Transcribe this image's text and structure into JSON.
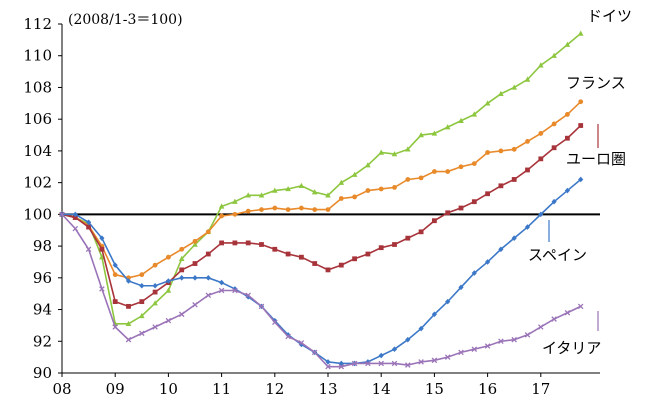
{
  "chart_data": {
    "type": "line",
    "note": "(2008/1-3＝100)",
    "ylim": [
      90,
      112
    ],
    "yticks": [
      90,
      92,
      94,
      96,
      98,
      100,
      102,
      104,
      106,
      108,
      110,
      112
    ],
    "xlim": [
      0,
      40
    ],
    "xticks": [
      {
        "label": "08",
        "q": 0
      },
      {
        "label": "09",
        "q": 4
      },
      {
        "label": "10",
        "q": 8
      },
      {
        "label": "11",
        "q": 12
      },
      {
        "label": "12",
        "q": 16
      },
      {
        "label": "13",
        "q": 20
      },
      {
        "label": "14",
        "q": 24
      },
      {
        "label": "15",
        "q": 28
      },
      {
        "label": "16",
        "q": 32
      },
      {
        "label": "17",
        "q": 36
      }
    ],
    "reference_line": 100,
    "series": [
      {
        "name": "ドイツ",
        "color": "#8dc63f",
        "marker": "triangle",
        "values": [
          100,
          99.8,
          99.4,
          97.3,
          93.1,
          93.1,
          93.6,
          94.4,
          95.2,
          97.2,
          98.1,
          98.9,
          100.5,
          100.8,
          101.2,
          101.2,
          101.5,
          101.6,
          101.8,
          101.4,
          101.2,
          102.0,
          102.5,
          103.1,
          103.9,
          103.8,
          104.1,
          105.0,
          105.1,
          105.5,
          105.9,
          106.3,
          107.0,
          107.6,
          108.0,
          108.5,
          109.4,
          110.0,
          110.7,
          111.4
        ]
      },
      {
        "name": "フランス",
        "color": "#e8892a",
        "marker": "circle",
        "values": [
          100,
          99.8,
          99.3,
          98.0,
          96.2,
          96.0,
          96.2,
          96.8,
          97.3,
          97.8,
          98.3,
          98.9,
          99.9,
          100.0,
          100.2,
          100.3,
          100.4,
          100.3,
          100.4,
          100.3,
          100.3,
          101.0,
          101.1,
          101.5,
          101.6,
          101.7,
          102.2,
          102.3,
          102.7,
          102.7,
          103.0,
          103.2,
          103.9,
          104.0,
          104.1,
          104.6,
          105.1,
          105.7,
          106.3,
          107.1
        ]
      },
      {
        "name": "ユーロ圏",
        "color": "#a8343b",
        "marker": "square",
        "values": [
          100,
          99.8,
          99.2,
          97.8,
          94.5,
          94.2,
          94.5,
          95.1,
          95.7,
          96.5,
          96.9,
          97.5,
          98.2,
          98.2,
          98.2,
          98.1,
          97.8,
          97.5,
          97.3,
          96.9,
          96.5,
          96.8,
          97.2,
          97.5,
          97.9,
          98.1,
          98.5,
          98.9,
          99.6,
          100.1,
          100.4,
          100.8,
          101.3,
          101.8,
          102.2,
          102.8,
          103.5,
          104.2,
          104.8,
          105.6
        ]
      },
      {
        "name": "スペイン",
        "color": "#3c78c8",
        "marker": "diamond",
        "values": [
          100,
          100.0,
          99.5,
          98.5,
          96.8,
          95.8,
          95.5,
          95.5,
          95.8,
          96.0,
          96.0,
          96.0,
          95.7,
          95.3,
          94.8,
          94.2,
          93.3,
          92.4,
          91.8,
          91.3,
          90.7,
          90.6,
          90.6,
          90.7,
          91.1,
          91.5,
          92.1,
          92.8,
          93.7,
          94.5,
          95.4,
          96.3,
          97.0,
          97.8,
          98.5,
          99.2,
          100.0,
          100.8,
          101.5,
          102.2
        ]
      },
      {
        "name": "イタリア",
        "color": "#9b74b8",
        "marker": "x",
        "values": [
          100,
          99.1,
          97.8,
          95.3,
          92.9,
          92.1,
          92.5,
          92.9,
          93.3,
          93.7,
          94.3,
          94.9,
          95.2,
          95.2,
          94.9,
          94.2,
          93.2,
          92.3,
          91.9,
          91.3,
          90.4,
          90.4,
          90.6,
          90.6,
          90.6,
          90.6,
          90.5,
          90.7,
          90.8,
          91.0,
          91.3,
          91.5,
          91.7,
          92.0,
          92.1,
          92.4,
          92.9,
          93.4,
          93.8,
          94.2
        ]
      }
    ]
  }
}
